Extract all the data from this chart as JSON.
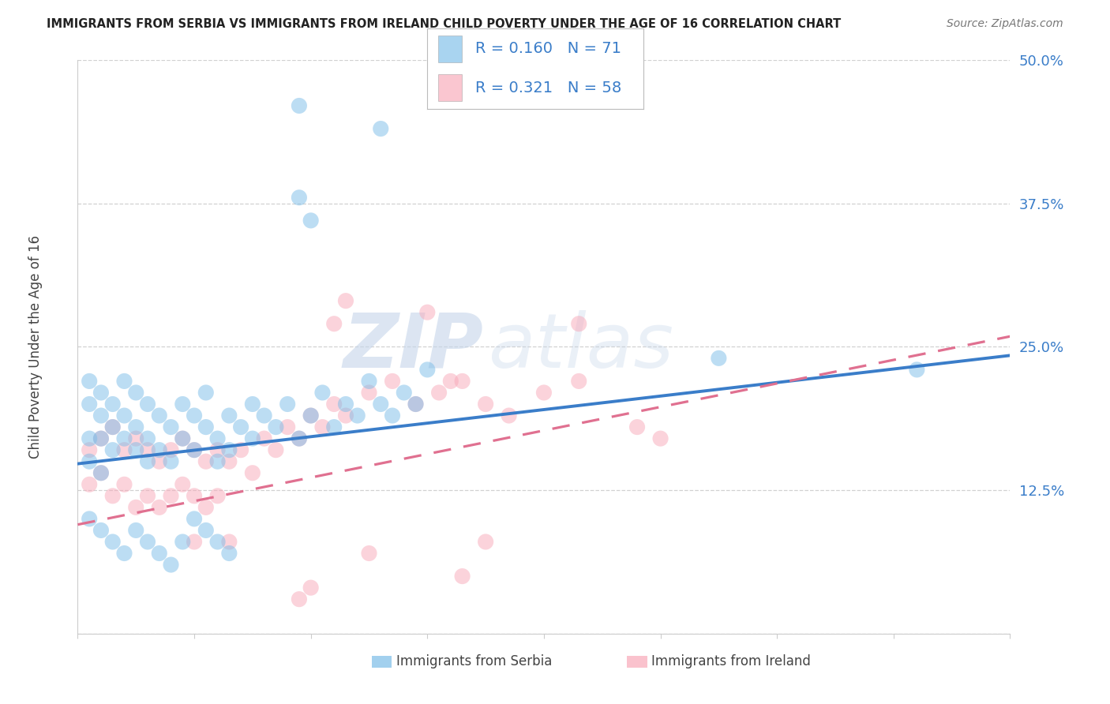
{
  "title": "IMMIGRANTS FROM SERBIA VS IMMIGRANTS FROM IRELAND CHILD POVERTY UNDER THE AGE OF 16 CORRELATION CHART",
  "source": "Source: ZipAtlas.com",
  "ylabel": "Child Poverty Under the Age of 16",
  "xlim": [
    0.0,
    0.08
  ],
  "ylim": [
    0.0,
    0.5
  ],
  "legend_label1": "Immigrants from Serbia",
  "legend_label2": "Immigrants from Ireland",
  "R1": 0.16,
  "N1": 71,
  "R2": 0.321,
  "N2": 58,
  "color_serbia": "#7bbde8",
  "color_ireland": "#f8a8b8",
  "color_serbia_line": "#3a7dc9",
  "color_ireland_line": "#e07090",
  "serbia_intercept": 0.148,
  "serbia_slope": 1.18,
  "ireland_intercept": 0.095,
  "ireland_slope": 2.05,
  "background_color": "#ffffff",
  "grid_color": "#cccccc",
  "watermark_text": "ZIP",
  "watermark_text2": "atlas"
}
